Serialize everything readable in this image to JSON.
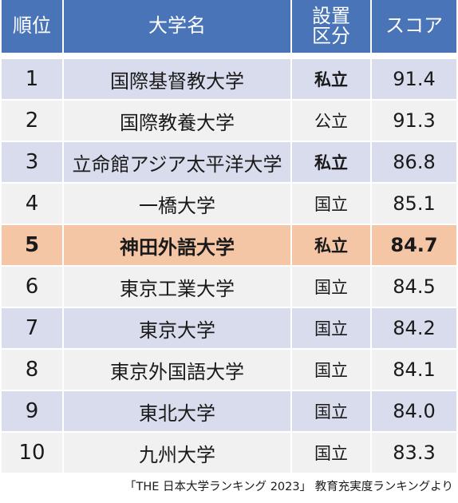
{
  "table": {
    "headers": {
      "rank": "順位",
      "name": "大学名",
      "type_line1": "設置",
      "type_line2": "区分",
      "score": "スコア"
    },
    "rows": [
      {
        "rank": "1",
        "name": "国際基督教大学",
        "type": "私立",
        "score": "91.4"
      },
      {
        "rank": "2",
        "name": "国際教養大学",
        "type": "公立",
        "score": "91.3"
      },
      {
        "rank": "3",
        "name": "立命館アジア太平洋大学",
        "type": "私立",
        "score": "86.8"
      },
      {
        "rank": "4",
        "name": "一橋大学",
        "type": "国立",
        "score": "85.1"
      },
      {
        "rank": "5",
        "name": "神田外語大学",
        "type": "私立",
        "score": "84.7"
      },
      {
        "rank": "6",
        "name": "東京工業大学",
        "type": "国立",
        "score": "84.5"
      },
      {
        "rank": "7",
        "name": "東京大学",
        "type": "国立",
        "score": "84.2"
      },
      {
        "rank": "8",
        "name": "東京外国語大学",
        "type": "国立",
        "score": "84.1"
      },
      {
        "rank": "9",
        "name": "東北大学",
        "type": "国立",
        "score": "84.0"
      },
      {
        "rank": "10",
        "name": "九州大学",
        "type": "国立",
        "score": "83.3"
      }
    ]
  },
  "source_note": "「THE 日本大学ランキング 2023」 教育充実度ランキングより",
  "colors": {
    "header_bg": "#4a74b8",
    "row_odd_bg": "#d9dcec",
    "row_even_bg": "#f1f1f1",
    "highlight_bg": "#f5c6a5"
  }
}
